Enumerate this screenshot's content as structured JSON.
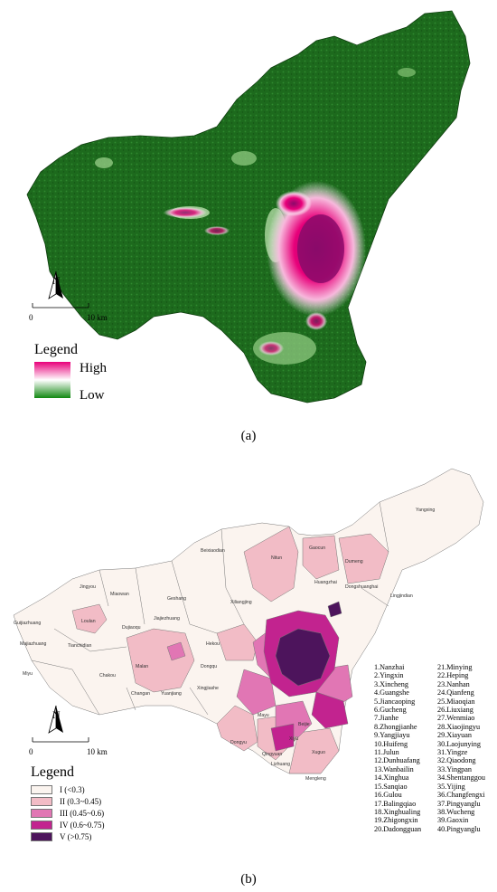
{
  "panel_a": {
    "caption": "(a)",
    "legend_title": "Legend",
    "high_label": "High",
    "low_label": "Low",
    "gradient_colors": [
      "#e8007a",
      "#ffffff",
      "#118811"
    ],
    "base_color": "#1d6a1d",
    "scale_bar": {
      "start": "0",
      "end": "10 km"
    },
    "north_label": "N"
  },
  "panel_b": {
    "caption": "(b)",
    "legend_title": "Legend",
    "north_label": "N",
    "scale_bar": {
      "start": "0",
      "end": "10 km"
    },
    "classes": [
      {
        "label": "I   (<0.3)",
        "color": "#fbf4ef"
      },
      {
        "label": "II   (0.3~0.45)",
        "color": "#f2bcc6"
      },
      {
        "label": "III   (0.45~0.6)",
        "color": "#e176b4"
      },
      {
        "label": "IV   (0.6~0.75)",
        "color": "#c2238f"
      },
      {
        "label": "V   (>0.75)",
        "color": "#4d145c"
      }
    ],
    "town_labels": [
      "Yangxing",
      "Dumeng",
      "Gaocun",
      "Nitun",
      "Beixiaodian",
      "Huangzhai",
      "Dongshuanghai",
      "Lingjindian",
      "Jingyou",
      "Miaowan",
      "Geshang",
      "Xiliangjing",
      "Guijiazhuang",
      "Loulan",
      "Dujiaoqu",
      "Jiajiezhuang",
      "Majiazhuang",
      "Tianchidian",
      "Hekou",
      "Miyu",
      "Chakou",
      "Malan",
      "Dongqu",
      "Changan",
      "Yuanjiang",
      "Xingjiashe",
      "Dongyu",
      "Mayu",
      "Qingyuan",
      "Lizhuang",
      "Mengleng",
      "Xiyu",
      "Xuguo",
      "Beijie"
    ],
    "numbered_list_col1": [
      "1.Nanzhai",
      "2.Yingxin",
      "3.Xincheng",
      "4.Guangshe",
      "5.Jiancaoping",
      "6.Gucheng",
      "7.Jianhe",
      "8.Zhongjianhe",
      "9.Yangjiayu",
      "10.Huifeng",
      "11.Julun",
      "12.Dunhuafang",
      "13.Wanbailin",
      "14.Xinghua",
      "15.Sanqiao",
      "16.Gulou",
      "17.Balingqiao",
      "18.Xinghualing",
      "19.Zhigongxin",
      "20.Dadongguan"
    ],
    "numbered_list_col2": [
      "21.Minying",
      "22.Heping",
      "23.Nanhan",
      "24.Qianfeng",
      "25.Miaoqian",
      "26.Liuxiang",
      "27.Wenmiao",
      "28.Xiaojingyu",
      "29.Xiayuan",
      "30.Laojunying",
      "31.Yingze",
      "32.Qiaodong",
      "33.Yingpan",
      "34.Shentanggou",
      "35.Yijing",
      "36.Changfengxi",
      "37.Pingyanglu",
      "38.Wucheng",
      "39.Gaoxin",
      "40.Pingyanglu"
    ]
  }
}
